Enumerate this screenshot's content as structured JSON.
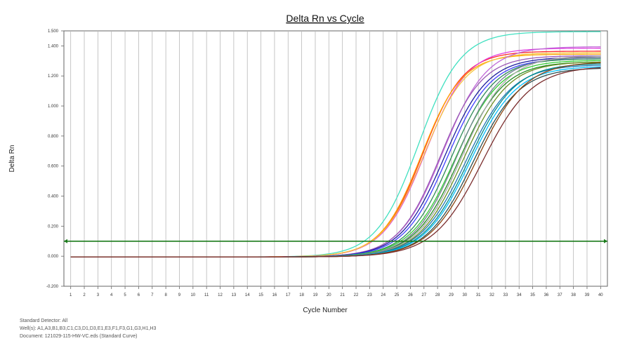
{
  "chart_data": {
    "type": "line",
    "title": "Delta Rn vs Cycle",
    "xlabel": "Cycle Number",
    "ylabel": "Delta Rn",
    "xlim": [
      0.5,
      40.5
    ],
    "ylim": [
      -0.2,
      1.5
    ],
    "x_ticks": [
      1,
      2,
      3,
      4,
      5,
      6,
      7,
      8,
      9,
      10,
      11,
      12,
      13,
      14,
      15,
      16,
      17,
      18,
      19,
      20,
      21,
      22,
      23,
      24,
      25,
      26,
      27,
      28,
      29,
      30,
      31,
      32,
      33,
      34,
      35,
      36,
      37,
      38,
      39,
      40
    ],
    "y_ticks": [
      "-0.200",
      "0.000",
      "0.200",
      "0.400",
      "0.600",
      "0.800",
      "1.000",
      "1.200",
      "1.400",
      "1.500"
    ],
    "y_tick_values": [
      -0.2,
      0.0,
      0.2,
      0.4,
      0.6,
      0.8,
      1.0,
      1.2,
      1.4,
      1.5
    ],
    "grid": "vertical",
    "legend": "none",
    "threshold": {
      "value": 0.1,
      "color": "#1a7a1a"
    },
    "series": [
      {
        "color": "#40e0c0",
        "plateau": 1.5,
        "midpoint": 26.6,
        "slope": 1.55
      },
      {
        "color": "#ff2a2a",
        "plateau": 1.37,
        "midpoint": 26.9,
        "slope": 1.5
      },
      {
        "color": "#e040e0",
        "plateau": 1.39,
        "midpoint": 27.1,
        "slope": 1.55
      },
      {
        "color": "#ffa500",
        "plateau": 1.35,
        "midpoint": 26.8,
        "slope": 1.5
      },
      {
        "color": "#f5c542",
        "plateau": 1.36,
        "midpoint": 27.0,
        "slope": 1.55
      },
      {
        "color": "#c06ad8",
        "plateau": 1.4,
        "midpoint": 28.4,
        "slope": 1.6
      },
      {
        "color": "#9b59b6",
        "plateau": 1.34,
        "midpoint": 28.2,
        "slope": 1.55
      },
      {
        "color": "#1e1e9e",
        "plateau": 1.33,
        "midpoint": 28.5,
        "slope": 1.6
      },
      {
        "color": "#4040ff",
        "plateau": 1.32,
        "midpoint": 28.7,
        "slope": 1.6
      },
      {
        "color": "#2e8b57",
        "plateau": 1.32,
        "midpoint": 29.0,
        "slope": 1.6
      },
      {
        "color": "#32cd32",
        "plateau": 1.31,
        "midpoint": 29.3,
        "slope": 1.65
      },
      {
        "color": "#228b22",
        "plateau": 1.3,
        "midpoint": 29.6,
        "slope": 1.65
      },
      {
        "color": "#708090",
        "plateau": 1.33,
        "midpoint": 29.4,
        "slope": 1.6
      },
      {
        "color": "#a9a9a9",
        "plateau": 1.34,
        "midpoint": 29.8,
        "slope": 1.65
      },
      {
        "color": "#6b8e23",
        "plateau": 1.3,
        "midpoint": 29.9,
        "slope": 1.65
      },
      {
        "color": "#1f77b4",
        "plateau": 1.28,
        "midpoint": 30.1,
        "slope": 1.7
      },
      {
        "color": "#008b8b",
        "plateau": 1.29,
        "midpoint": 30.3,
        "slope": 1.7
      },
      {
        "color": "#00bfff",
        "plateau": 1.27,
        "midpoint": 30.4,
        "slope": 1.7
      },
      {
        "color": "#2f4f4f",
        "plateau": 1.26,
        "midpoint": 30.6,
        "slope": 1.7
      },
      {
        "color": "#8b4513",
        "plateau": 1.3,
        "midpoint": 30.9,
        "slope": 1.75
      },
      {
        "color": "#7b2d2d",
        "plateau": 1.27,
        "midpoint": 31.3,
        "slope": 1.8
      }
    ]
  },
  "footer": {
    "line1": "Standard Detector: All",
    "line2": "Well(s): A1,A3,B1,B3,C1,C3,D1,D3,E1,E3,F1,F3,G1,G3,H1,H3",
    "line3": "Document: 121029-115-HW-VC.eds (Standard Curve)"
  }
}
